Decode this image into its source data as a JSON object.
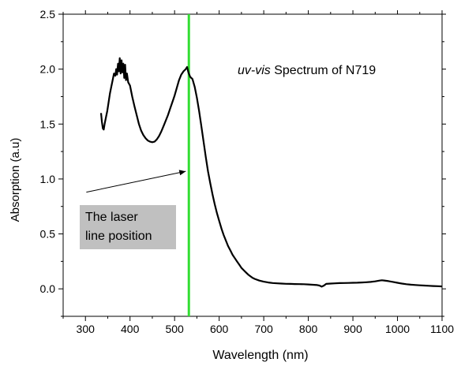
{
  "chart_data": {
    "type": "line",
    "title": "",
    "annotation_title": {
      "italic": "uv-vis",
      "rest": " Spectrum of N719"
    },
    "callout": {
      "lines": [
        "The laser",
        "line position"
      ],
      "fill": "#c0c0c0",
      "arrow_from": [
        302,
        0.88
      ],
      "arrow_to": [
        525,
        1.07
      ]
    },
    "xlabel": "Wavelength (nm)",
    "ylabel": "Absorption (a.u)",
    "xlim": [
      250,
      1100
    ],
    "ylim": [
      -0.25,
      2.5
    ],
    "xticks": [
      300,
      400,
      500,
      600,
      700,
      800,
      900,
      1000,
      1100
    ],
    "yticks": [
      0.0,
      0.5,
      1.0,
      1.5,
      2.0,
      2.5
    ],
    "ytick_labels": [
      "0.0",
      "0.5",
      "1.0",
      "1.5",
      "2.0",
      "2.5"
    ],
    "grid": false,
    "colors": {
      "spectrum": "#000000",
      "laser_line": "#33dd33",
      "callout_fill": "#c0c0c0"
    },
    "laser_line_x": 532,
    "series": [
      {
        "color": "#000000",
        "points": [
          [
            335,
            1.6
          ],
          [
            337,
            1.52
          ],
          [
            339,
            1.46
          ],
          [
            341,
            1.45
          ],
          [
            343,
            1.5
          ],
          [
            346,
            1.56
          ],
          [
            349,
            1.62
          ],
          [
            352,
            1.7
          ],
          [
            355,
            1.78
          ],
          [
            358,
            1.84
          ],
          [
            361,
            1.9
          ],
          [
            364,
            1.96
          ],
          [
            367,
            1.94
          ],
          [
            369,
            2.0
          ],
          [
            371,
            1.95
          ],
          [
            373,
            2.05
          ],
          [
            375,
            1.98
          ],
          [
            377,
            2.1
          ],
          [
            379,
            1.96
          ],
          [
            381,
            2.08
          ],
          [
            383,
            1.97
          ],
          [
            385,
            2.05
          ],
          [
            387,
            1.92
          ],
          [
            389,
            2.04
          ],
          [
            391,
            1.9
          ],
          [
            393,
            1.96
          ],
          [
            396,
            1.88
          ],
          [
            400,
            1.85
          ],
          [
            405,
            1.75
          ],
          [
            410,
            1.66
          ],
          [
            415,
            1.58
          ],
          [
            420,
            1.5
          ],
          [
            425,
            1.44
          ],
          [
            430,
            1.4
          ],
          [
            435,
            1.37
          ],
          [
            440,
            1.35
          ],
          [
            445,
            1.34
          ],
          [
            450,
            1.335
          ],
          [
            455,
            1.34
          ],
          [
            460,
            1.36
          ],
          [
            465,
            1.39
          ],
          [
            470,
            1.43
          ],
          [
            475,
            1.48
          ],
          [
            480,
            1.53
          ],
          [
            485,
            1.58
          ],
          [
            490,
            1.64
          ],
          [
            495,
            1.7
          ],
          [
            500,
            1.76
          ],
          [
            505,
            1.83
          ],
          [
            510,
            1.9
          ],
          [
            515,
            1.95
          ],
          [
            520,
            1.98
          ],
          [
            525,
            2.0
          ],
          [
            528,
            2.02
          ],
          [
            531,
            1.97
          ],
          [
            535,
            1.93
          ],
          [
            540,
            1.91
          ],
          [
            545,
            1.84
          ],
          [
            550,
            1.74
          ],
          [
            555,
            1.62
          ],
          [
            560,
            1.48
          ],
          [
            565,
            1.34
          ],
          [
            570,
            1.2
          ],
          [
            575,
            1.07
          ],
          [
            580,
            0.96
          ],
          [
            585,
            0.86
          ],
          [
            590,
            0.77
          ],
          [
            595,
            0.69
          ],
          [
            600,
            0.62
          ],
          [
            605,
            0.55
          ],
          [
            610,
            0.49
          ],
          [
            615,
            0.44
          ],
          [
            620,
            0.39
          ],
          [
            625,
            0.35
          ],
          [
            630,
            0.31
          ],
          [
            635,
            0.28
          ],
          [
            640,
            0.25
          ],
          [
            645,
            0.22
          ],
          [
            650,
            0.19
          ],
          [
            655,
            0.17
          ],
          [
            660,
            0.15
          ],
          [
            665,
            0.13
          ],
          [
            670,
            0.115
          ],
          [
            675,
            0.1
          ],
          [
            680,
            0.09
          ],
          [
            690,
            0.075
          ],
          [
            700,
            0.065
          ],
          [
            710,
            0.058
          ],
          [
            720,
            0.053
          ],
          [
            730,
            0.05
          ],
          [
            740,
            0.048
          ],
          [
            750,
            0.046
          ],
          [
            760,
            0.045
          ],
          [
            770,
            0.044
          ],
          [
            780,
            0.043
          ],
          [
            790,
            0.042
          ],
          [
            800,
            0.04
          ],
          [
            810,
            0.037
          ],
          [
            820,
            0.034
          ],
          [
            825,
            0.03
          ],
          [
            830,
            0.02
          ],
          [
            835,
            0.03
          ],
          [
            840,
            0.045
          ],
          [
            850,
            0.048
          ],
          [
            860,
            0.05
          ],
          [
            870,
            0.052
          ],
          [
            880,
            0.053
          ],
          [
            890,
            0.054
          ],
          [
            900,
            0.055
          ],
          [
            910,
            0.056
          ],
          [
            920,
            0.058
          ],
          [
            930,
            0.06
          ],
          [
            940,
            0.063
          ],
          [
            950,
            0.068
          ],
          [
            960,
            0.075
          ],
          [
            965,
            0.078
          ],
          [
            970,
            0.076
          ],
          [
            980,
            0.07
          ],
          [
            990,
            0.063
          ],
          [
            1000,
            0.055
          ],
          [
            1010,
            0.048
          ],
          [
            1020,
            0.042
          ],
          [
            1030,
            0.038
          ],
          [
            1040,
            0.035
          ],
          [
            1050,
            0.032
          ],
          [
            1060,
            0.03
          ],
          [
            1070,
            0.028
          ],
          [
            1080,
            0.026
          ],
          [
            1090,
            0.024
          ],
          [
            1100,
            0.022
          ]
        ]
      }
    ]
  }
}
